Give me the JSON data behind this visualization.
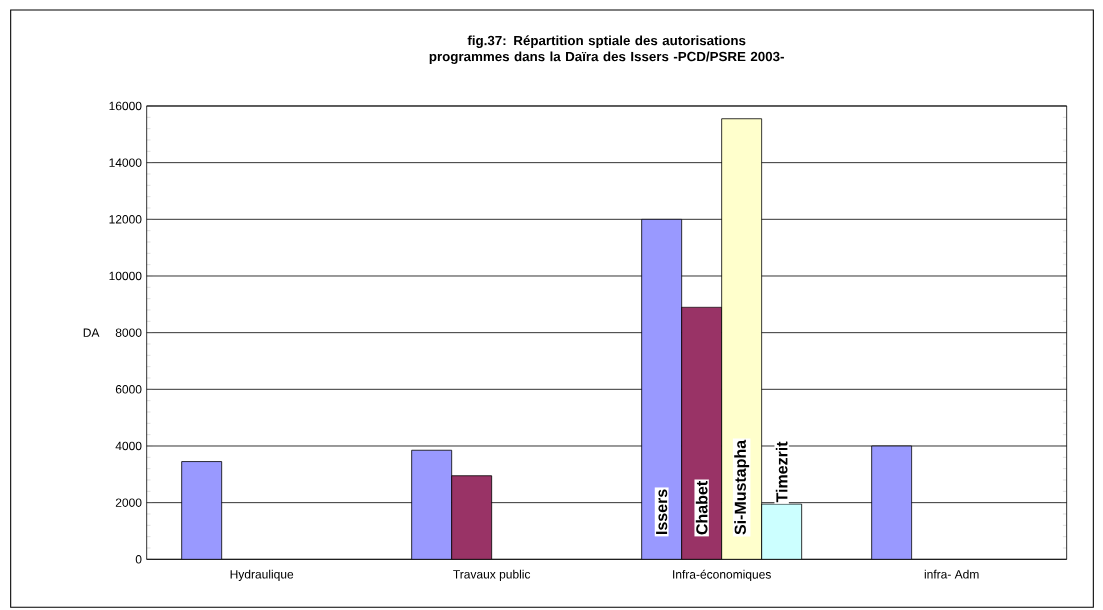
{
  "chart_data": {
    "type": "bar",
    "title": "fig.37: Répartition sptiale des autorisations programmes dans la Daïra des Issers -PCD/PSRE 2003-",
    "ylabel": "DA",
    "categories": [
      "Hydraulique",
      "Travaux public",
      "Infra-économiques",
      "infra- Adm"
    ],
    "series": [
      {
        "name": "Issers",
        "color": "#9999ff",
        "values": [
          3450,
          3850,
          12000,
          4000
        ]
      },
      {
        "name": "Chabet",
        "color": "#993366",
        "values": [
          null,
          2950,
          8900,
          null
        ]
      },
      {
        "name": "Si-Mustapha",
        "color": "#ffffcc",
        "values": [
          null,
          null,
          15550,
          null
        ]
      },
      {
        "name": "Timezrit",
        "color": "#ccffff",
        "values": [
          null,
          null,
          1950,
          null
        ]
      }
    ],
    "ylim": [
      0,
      16000
    ],
    "yticks": [
      0,
      2000,
      4000,
      6000,
      8000,
      10000,
      12000,
      14000,
      16000
    ],
    "grid": "y"
  }
}
